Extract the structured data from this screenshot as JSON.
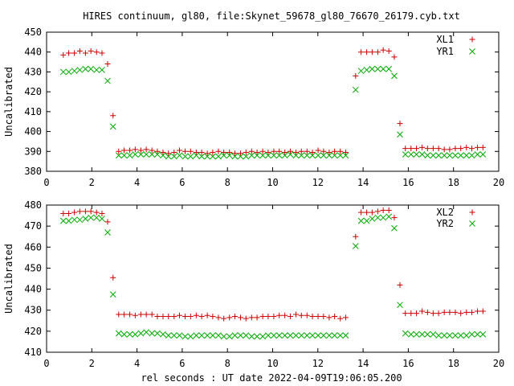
{
  "title": "HIRES continuum, gl80, file:Skynet_59678_gl80_76670_26179.cyb.txt",
  "xlabel": "rel seconds : UT date 2022-04-09T19:06:05.200",
  "colors": {
    "plus": "#cc0000",
    "cross": "#00aa00"
  },
  "chart_data": [
    {
      "type": "scatter",
      "ylabel": "Uncalibrated",
      "xlim": [
        0,
        20
      ],
      "ylim": [
        380,
        450
      ],
      "xticks": [
        "0",
        "2",
        "4",
        "6",
        "8",
        "10",
        "12",
        "14",
        "16",
        "18",
        "20"
      ],
      "yticks": [
        "380",
        "390",
        "400",
        "410",
        "420",
        "430",
        "440",
        "450"
      ],
      "x": [
        0.74,
        0.98,
        1.23,
        1.47,
        1.72,
        1.96,
        2.21,
        2.45,
        2.7,
        2.94,
        3.19,
        3.43,
        3.68,
        3.92,
        4.17,
        4.41,
        4.66,
        4.9,
        5.15,
        5.39,
        5.64,
        5.88,
        6.13,
        6.37,
        6.62,
        6.86,
        7.11,
        7.35,
        7.6,
        7.84,
        8.09,
        8.33,
        8.58,
        8.82,
        9.07,
        9.31,
        9.56,
        9.8,
        10.05,
        10.29,
        10.54,
        10.78,
        11.03,
        11.27,
        11.52,
        11.76,
        12.01,
        12.25,
        12.5,
        12.74,
        12.99,
        13.23,
        13.67,
        13.91,
        14.16,
        14.4,
        14.65,
        14.89,
        15.14,
        15.38,
        15.63,
        15.87,
        16.12,
        16.36,
        16.61,
        16.85,
        17.1,
        17.34,
        17.59,
        17.83,
        18.08,
        18.32,
        18.57,
        18.81,
        19.06,
        19.3
      ],
      "series": [
        {
          "name": "XL1",
          "marker": "plus",
          "values": [
            438.5,
            439.5,
            439.5,
            440.5,
            439.5,
            440.5,
            440,
            439.5,
            434,
            408,
            390,
            390.5,
            390.5,
            391,
            390.5,
            391,
            390.5,
            390,
            389.5,
            389,
            389.5,
            390.5,
            390,
            390,
            389.5,
            389.5,
            389,
            389.5,
            390,
            389.5,
            389.5,
            389,
            389,
            389.5,
            390,
            389.5,
            390,
            389.5,
            390,
            390,
            389.5,
            390,
            389.5,
            390,
            390,
            389.5,
            390.5,
            390,
            389.5,
            390,
            390,
            389.5,
            428,
            440,
            440,
            440,
            440,
            441,
            440.5,
            437.5,
            404,
            391.5,
            391.5,
            391.5,
            392,
            391.5,
            391.5,
            391.5,
            391,
            391,
            391.5,
            391.5,
            392,
            391.5,
            392,
            392
          ]
        },
        {
          "name": "YR1",
          "marker": "cross",
          "values": [
            430,
            430,
            430.5,
            431,
            431.5,
            431.5,
            431,
            431,
            425.5,
            402.5,
            388,
            388,
            388,
            388.5,
            388.5,
            388.5,
            388.5,
            388.5,
            388,
            387.5,
            387.5,
            388,
            387.5,
            387.5,
            388,
            387.5,
            387.5,
            387.5,
            387.5,
            388,
            388,
            387.5,
            387.5,
            387.5,
            388,
            388,
            388,
            388,
            388,
            388,
            388,
            388.5,
            388,
            388,
            388,
            388,
            388,
            388,
            388,
            388,
            388,
            388,
            421,
            430.5,
            431,
            431.5,
            431.5,
            431.5,
            431.5,
            428,
            398.5,
            388.5,
            388.5,
            388.5,
            388.5,
            388,
            388,
            388,
            388,
            388,
            388,
            388,
            388,
            388,
            388.5,
            388.5
          ]
        }
      ]
    },
    {
      "type": "scatter",
      "ylabel": "Uncalibrated",
      "xlim": [
        0,
        20
      ],
      "ylim": [
        410,
        480
      ],
      "xticks": [
        "0",
        "2",
        "4",
        "6",
        "8",
        "10",
        "12",
        "14",
        "16",
        "18",
        "20"
      ],
      "yticks": [
        "410",
        "420",
        "430",
        "440",
        "450",
        "460",
        "470",
        "480"
      ],
      "x": [
        0.74,
        0.98,
        1.23,
        1.47,
        1.72,
        1.96,
        2.21,
        2.45,
        2.7,
        2.94,
        3.19,
        3.43,
        3.68,
        3.92,
        4.17,
        4.41,
        4.66,
        4.9,
        5.15,
        5.39,
        5.64,
        5.88,
        6.13,
        6.37,
        6.62,
        6.86,
        7.11,
        7.35,
        7.6,
        7.84,
        8.09,
        8.33,
        8.58,
        8.82,
        9.07,
        9.31,
        9.56,
        9.8,
        10.05,
        10.29,
        10.54,
        10.78,
        11.03,
        11.27,
        11.52,
        11.76,
        12.01,
        12.25,
        12.5,
        12.74,
        12.99,
        13.23,
        13.67,
        13.91,
        14.16,
        14.4,
        14.65,
        14.89,
        15.14,
        15.38,
        15.63,
        15.87,
        16.12,
        16.36,
        16.61,
        16.85,
        17.1,
        17.34,
        17.59,
        17.83,
        18.08,
        18.32,
        18.57,
        18.81,
        19.06,
        19.3
      ],
      "series": [
        {
          "name": "XL2",
          "marker": "plus",
          "values": [
            476,
            476,
            476.5,
            477,
            477,
            477,
            476.5,
            476,
            472,
            445.5,
            428,
            428,
            428,
            427.5,
            428,
            428,
            428,
            427,
            427,
            427,
            427,
            427.5,
            427,
            427,
            427.5,
            427,
            427.5,
            427,
            426.5,
            426,
            426.5,
            427,
            426.5,
            426,
            426.5,
            426.5,
            427,
            427,
            427,
            427.5,
            427.5,
            427,
            428,
            427.5,
            427.5,
            427,
            427,
            427,
            426.5,
            427,
            426,
            426.5,
            465,
            476.5,
            476.5,
            476.5,
            477,
            477.5,
            477.5,
            474,
            442,
            428.5,
            428.5,
            428.5,
            429.5,
            429,
            428.5,
            428.5,
            429,
            429,
            429,
            428.5,
            429,
            429,
            429.5,
            429.5
          ]
        },
        {
          "name": "YR2",
          "marker": "cross",
          "values": [
            472.5,
            472.5,
            473,
            473,
            473.5,
            474,
            474,
            473.5,
            467,
            437.5,
            419,
            418.5,
            418.5,
            418.5,
            419,
            419.5,
            419,
            419,
            418.5,
            418,
            418,
            418,
            417.5,
            417.5,
            418,
            418,
            418,
            418,
            418,
            417.5,
            417.5,
            418,
            418,
            418,
            417.5,
            417.5,
            417.5,
            418,
            418,
            418,
            418,
            418,
            418,
            418,
            418,
            418,
            418,
            418,
            418,
            418,
            418,
            418,
            460.5,
            472.5,
            472.5,
            473.5,
            474,
            474,
            474.5,
            469,
            432.5,
            419,
            418.5,
            418.5,
            418.5,
            418.5,
            418.5,
            418,
            418,
            418,
            418,
            418,
            418,
            418.5,
            418.5,
            418.5
          ]
        }
      ]
    }
  ]
}
